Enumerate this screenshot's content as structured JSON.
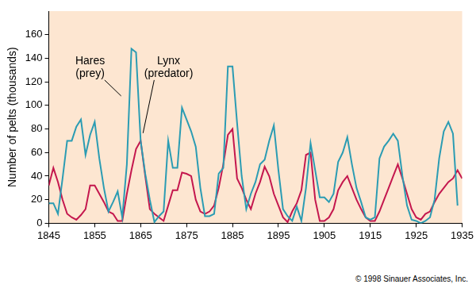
{
  "chart_data": {
    "type": "line",
    "ylabel": "Number of pelts (thousands)",
    "source": "© 1998 Sinauer Associates, Inc.",
    "x": [
      1845,
      1846,
      1847,
      1848,
      1849,
      1850,
      1851,
      1852,
      1853,
      1854,
      1855,
      1856,
      1857,
      1858,
      1859,
      1860,
      1861,
      1862,
      1863,
      1864,
      1865,
      1866,
      1867,
      1868,
      1869,
      1870,
      1871,
      1872,
      1873,
      1874,
      1875,
      1876,
      1877,
      1878,
      1879,
      1880,
      1881,
      1882,
      1883,
      1884,
      1885,
      1886,
      1887,
      1888,
      1889,
      1890,
      1891,
      1892,
      1893,
      1894,
      1895,
      1896,
      1897,
      1898,
      1899,
      1900,
      1901,
      1902,
      1903,
      1904,
      1905,
      1906,
      1907,
      1908,
      1909,
      1910,
      1911,
      1912,
      1913,
      1914,
      1915,
      1916,
      1917,
      1918,
      1919,
      1920,
      1921,
      1922,
      1923,
      1924,
      1925,
      1926,
      1927,
      1928,
      1929,
      1930,
      1931,
      1932,
      1933,
      1934,
      1935
    ],
    "series": [
      {
        "name": "Hares (prey)",
        "color": "#2b9cb3",
        "values": [
          17,
          17,
          8,
          38,
          70,
          70,
          82,
          88,
          58,
          75,
          86,
          55,
          30,
          10,
          18,
          27,
          5,
          50,
          148,
          145,
          70,
          42,
          20,
          1,
          6,
          10,
          70,
          47,
          47,
          98,
          88,
          78,
          65,
          30,
          6,
          6,
          8,
          42,
          47,
          133,
          133,
          85,
          40,
          12,
          25,
          35,
          50,
          54,
          70,
          83,
          45,
          12,
          6,
          2,
          14,
          2,
          30,
          68,
          45,
          22,
          22,
          18,
          25,
          52,
          60,
          73,
          50,
          30,
          18,
          5,
          3,
          5,
          55,
          65,
          70,
          76,
          70,
          40,
          15,
          3,
          2,
          0,
          2,
          5,
          20,
          55,
          78,
          86,
          76,
          15,
          null
        ]
      },
      {
        "name": "Lynx (predator)",
        "color": "#c4174e",
        "values": [
          32,
          47,
          35,
          20,
          8,
          5,
          3,
          7,
          12,
          32,
          32,
          25,
          18,
          10,
          8,
          2,
          2,
          25,
          45,
          63,
          70,
          40,
          12,
          8,
          5,
          2,
          15,
          28,
          28,
          43,
          42,
          40,
          20,
          10,
          8,
          10,
          15,
          30,
          50,
          75,
          80,
          38,
          30,
          20,
          12,
          25,
          35,
          48,
          40,
          25,
          15,
          5,
          1,
          10,
          17,
          28,
          58,
          60,
          20,
          2,
          2,
          5,
          12,
          28,
          35,
          40,
          30,
          20,
          12,
          5,
          2,
          2,
          10,
          20,
          30,
          40,
          50,
          38,
          25,
          12,
          5,
          3,
          8,
          10,
          18,
          25,
          30,
          35,
          38,
          45,
          38
        ]
      }
    ],
    "xlim": [
      1845,
      1935
    ],
    "xticks": [
      1845,
      1855,
      1865,
      1875,
      1885,
      1895,
      1905,
      1915,
      1925,
      1935
    ],
    "ylim": [
      0,
      180
    ],
    "yticks": [
      0,
      20,
      40,
      60,
      80,
      100,
      120,
      140,
      160
    ],
    "grid": false
  }
}
